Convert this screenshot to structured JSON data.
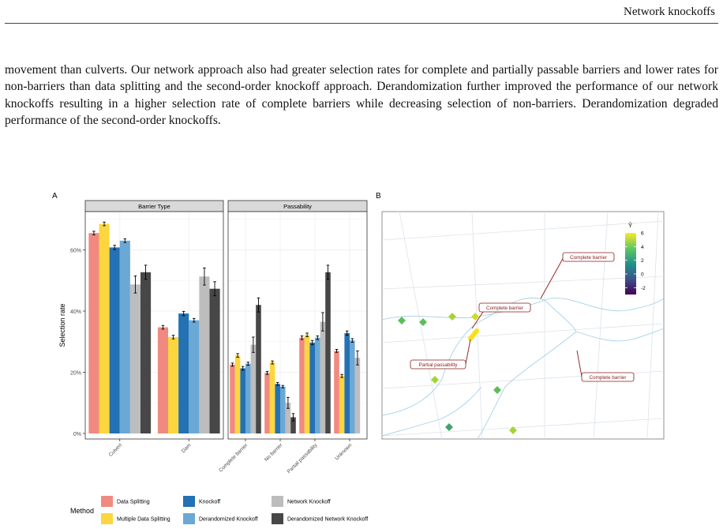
{
  "header": {
    "running_title": "Network knockoffs"
  },
  "body_text": "movement than culverts. Our network approach also had greater selection rates for complete and partially passable barriers and lower rates for non-barriers than data splitting and the second-order knockoff approach. Derandomization further improved the performance of our network knockoffs resulting in a higher selection rate of complete barriers while decreasing selection of non-barriers. Derandomization degraded performance of the second-order knockoffs.",
  "figure": {
    "panel_a_tag": "A",
    "panel_b_tag": "B",
    "legend_title": "Method",
    "colors": {
      "Data Splitting": "#f08a80",
      "Multiple Data Splitting": "#fcd63f",
      "Knockoff": "#2471b3",
      "Derandomized Knockoff": "#6aa8d6",
      "Network Knockoff": "#bdbdbd",
      "Derandomized Network Knockoff": "#474747"
    },
    "map_colorbar": {
      "title": "Ŷ",
      "ticks": [
        "6",
        "4",
        "2",
        "0",
        "-2"
      ],
      "range": [
        -3,
        6
      ]
    },
    "map_annotations": [
      "Complete barrier",
      "Complete barrier",
      "Partial passability",
      "Complete barrier"
    ]
  },
  "chart_data": {
    "type": "bar",
    "ylabel": "Selection rate",
    "ylim": [
      0,
      72
    ],
    "yticks": [
      "0%",
      "20%",
      "40%",
      "60%"
    ],
    "methods": [
      "Data Splitting",
      "Multiple Data Splitting",
      "Knockoff",
      "Derandomized Knockoff",
      "Network Knockoff",
      "Derandomized Network Knockoff"
    ],
    "facets": [
      {
        "strip": "Barrier Type",
        "categories": [
          "Culvert",
          "Dam"
        ],
        "series": [
          {
            "name": "Data Splitting",
            "values": [
              65.5,
              34.7
            ],
            "err": [
              0.6,
              0.6
            ]
          },
          {
            "name": "Multiple Data Splitting",
            "values": [
              68.5,
              31.5
            ],
            "err": [
              0.6,
              0.6
            ]
          },
          {
            "name": "Knockoff",
            "values": [
              60.8,
              39.2
            ],
            "err": [
              0.7,
              0.7
            ]
          },
          {
            "name": "Derandomized Knockoff",
            "values": [
              63.0,
              37.0
            ],
            "err": [
              0.6,
              0.6
            ]
          },
          {
            "name": "Network Knockoff",
            "values": [
              48.7,
              51.3
            ],
            "err": [
              2.8,
              2.8
            ]
          },
          {
            "name": "Derandomized Network Knockoff",
            "values": [
              52.7,
              47.3
            ],
            "err": [
              2.3,
              2.3
            ]
          }
        ]
      },
      {
        "strip": "Passability",
        "categories": [
          "Complete barrier",
          "No barrier",
          "Partial passability",
          "Unknown"
        ],
        "series": [
          {
            "name": "Data Splitting",
            "values": [
              22.5,
              19.8,
              31.3,
              27.0
            ],
            "err": [
              0.5,
              0.5,
              0.6,
              0.5
            ]
          },
          {
            "name": "Multiple Data Splitting",
            "values": [
              25.5,
              23.2,
              32.2,
              18.8
            ],
            "err": [
              0.6,
              0.5,
              0.6,
              0.5
            ]
          },
          {
            "name": "Knockoff",
            "values": [
              21.3,
              16.2,
              29.7,
              32.8
            ],
            "err": [
              0.6,
              0.5,
              0.7,
              0.7
            ]
          },
          {
            "name": "Derandomized Knockoff",
            "values": [
              22.8,
              15.3,
              31.3,
              30.4
            ],
            "err": [
              0.5,
              0.4,
              0.6,
              0.6
            ]
          },
          {
            "name": "Network Knockoff",
            "values": [
              29.0,
              10.0,
              36.5,
              24.7
            ],
            "err": [
              2.5,
              1.8,
              3.0,
              2.3
            ]
          },
          {
            "name": "Derandomized Network Knockoff",
            "values": [
              42.0,
              5.3,
              52.7,
              0
            ],
            "err": [
              2.3,
              1.2,
              2.3,
              0
            ]
          }
        ]
      }
    ]
  }
}
